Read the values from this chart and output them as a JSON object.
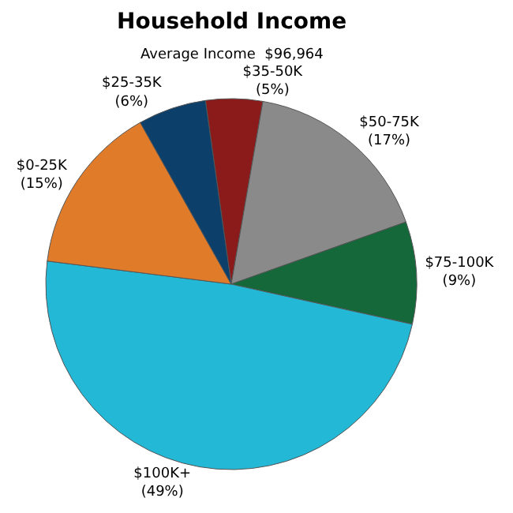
{
  "chart_data": {
    "type": "pie",
    "title": "Household Income",
    "subtitle": "Average Income  $96,964",
    "categories": [
      "$35-50K",
      "$50-75K",
      "$75-100K",
      "$100K+",
      "$0-25K",
      "$25-35K"
    ],
    "values": [
      5,
      17,
      9,
      49,
      15,
      6
    ],
    "value_labels": [
      "(5%)",
      "(17%)",
      "(9%)",
      "(49%)",
      "(15%)",
      "(6%)"
    ],
    "colors": [
      "#8b1a1a",
      "#8a8a8a",
      "#14683a",
      "#22b8d6",
      "#e07b2a",
      "#0d3f6b"
    ]
  }
}
